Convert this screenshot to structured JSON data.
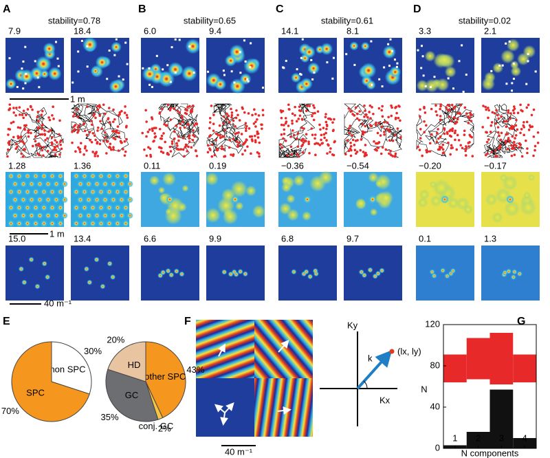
{
  "panels": [
    {
      "letter": "A",
      "stability": "stability=0.78",
      "rate": [
        "7.9",
        "18.4"
      ],
      "grid": [
        "1.28",
        "1.36"
      ],
      "spectrum": [
        "15.0",
        "13.4"
      ]
    },
    {
      "letter": "B",
      "stability": "stability=0.65",
      "rate": [
        "6.0",
        "9.4"
      ],
      "grid": [
        "0.11",
        "0.19"
      ],
      "spectrum": [
        "6.6",
        "9.9"
      ]
    },
    {
      "letter": "C",
      "stability": "stability=0.61",
      "rate": [
        "14.1",
        "8.1"
      ],
      "grid": [
        "−0.36",
        "−0.54"
      ],
      "spectrum": [
        "6.8",
        "9.7"
      ]
    },
    {
      "letter": "D",
      "stability": "stability=0.02",
      "rate": [
        "3.3",
        "2.1"
      ],
      "grid": [
        "−0.20",
        "−0.17"
      ],
      "spectrum": [
        "0.1",
        "1.3"
      ]
    }
  ],
  "scale_labels": [
    "1 m",
    "1 m",
    "40 m⁻¹"
  ],
  "panel_e": {
    "letter": "E"
  },
  "panel_f": {
    "letter": "F",
    "scale": "40 m⁻¹",
    "ky": "Ky",
    "kx": "Kx",
    "k": "k",
    "point": "(lx, ly)"
  },
  "panel_g": {
    "letter": "G"
  },
  "chart_data": [
    {
      "type": "pie",
      "categories": [
        "non SPC",
        "SPC"
      ],
      "values": [
        30,
        70
      ],
      "value_labels": [
        "30%",
        "70%"
      ],
      "colors": [
        "#ffffff",
        "#f5961e"
      ]
    },
    {
      "type": "pie",
      "categories": [
        "other SPC",
        "conj. GC",
        "GC",
        "HD"
      ],
      "values": [
        43,
        2,
        35,
        20
      ],
      "value_labels": [
        "43%",
        "2%",
        "35%",
        "20%"
      ],
      "colors": [
        "#f5961e",
        "#f6c343",
        "#6d6e71",
        "#e8c4a0"
      ]
    },
    {
      "type": "bar",
      "x_label": "N components",
      "y_label": "N",
      "xlim": [
        0.5,
        4.5
      ],
      "ylim": [
        0,
        120
      ],
      "xticks": [
        1,
        2,
        3,
        4
      ],
      "yticks": [
        0,
        40,
        80,
        120
      ],
      "x": [
        1,
        2,
        3,
        4
      ],
      "series": [
        {
          "color": "#e8292a",
          "values": [
            [
              64,
              91
            ],
            [
              67,
              107
            ],
            [
              62,
              112
            ],
            [
              64,
              91
            ]
          ]
        },
        {
          "color": "#111111",
          "values": [
            3,
            16,
            57,
            10
          ]
        }
      ]
    }
  ]
}
